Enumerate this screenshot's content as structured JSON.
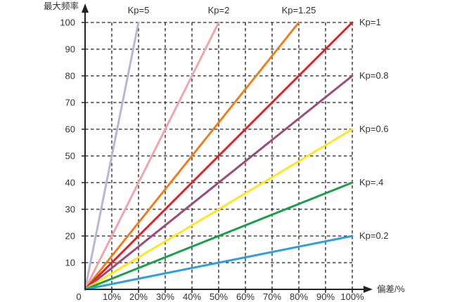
{
  "page": {
    "background": "#ffffff",
    "description": "Kp proportional-gain line chart: maximum frequency vs deviation percent"
  },
  "chart_data": {
    "type": "line",
    "title": "",
    "xlabel": "偏差/%",
    "ylabel": "最大频率",
    "xlim": [
      0,
      100
    ],
    "ylim": [
      0,
      100
    ],
    "grid": "dashed",
    "grid_color": "#222222",
    "axis_color": "#222222",
    "text_color": "#333333",
    "x_ticks": [
      {
        "value": 0,
        "label": "0"
      },
      {
        "value": 10,
        "label": "10%"
      },
      {
        "value": 20,
        "label": "20%"
      },
      {
        "value": 30,
        "label": "30%"
      },
      {
        "value": 40,
        "label": "40%"
      },
      {
        "value": 50,
        "label": "50%"
      },
      {
        "value": 60,
        "label": "60%"
      },
      {
        "value": 70,
        "label": "70%"
      },
      {
        "value": 80,
        "label": "80%"
      },
      {
        "value": 90,
        "label": "90%"
      },
      {
        "value": 100,
        "label": "100%"
      }
    ],
    "y_ticks": [
      {
        "value": 10,
        "label": "10"
      },
      {
        "value": 20,
        "label": "20"
      },
      {
        "value": 30,
        "label": "30"
      },
      {
        "value": 40,
        "label": "40"
      },
      {
        "value": 50,
        "label": "50"
      },
      {
        "value": 60,
        "label": "60"
      },
      {
        "value": 70,
        "label": "70"
      },
      {
        "value": 80,
        "label": "80"
      },
      {
        "value": 90,
        "label": "90"
      },
      {
        "value": 100,
        "label": "100"
      }
    ],
    "series": [
      {
        "name": "Kp=5",
        "kp": 5,
        "points": [
          [
            0,
            0
          ],
          [
            20,
            100
          ]
        ],
        "color": "#b7b6d8",
        "label_position": "top"
      },
      {
        "name": "Kp=2",
        "kp": 2,
        "points": [
          [
            0,
            0
          ],
          [
            50,
            100
          ]
        ],
        "color": "#f2a3ab",
        "label_position": "top"
      },
      {
        "name": "Kp=1.25",
        "kp": 1.25,
        "points": [
          [
            0,
            0
          ],
          [
            80,
            100
          ]
        ],
        "color": "#ee7d1e",
        "label_position": "top"
      },
      {
        "name": "Kp=1",
        "kp": 1,
        "points": [
          [
            0,
            0
          ],
          [
            100,
            100
          ]
        ],
        "color": "#d5232a",
        "label_position": "right"
      },
      {
        "name": "Kp=0.8",
        "kp": 0.8,
        "points": [
          [
            0,
            0
          ],
          [
            100,
            80
          ]
        ],
        "color": "#9b4a7c",
        "label_position": "right"
      },
      {
        "name": "Kp=0.6",
        "kp": 0.6,
        "points": [
          [
            0,
            0
          ],
          [
            100,
            60
          ]
        ],
        "color": "#ffe71f",
        "label_position": "right"
      },
      {
        "name": "Kp=.4",
        "kp": 0.4,
        "points": [
          [
            0,
            0
          ],
          [
            100,
            40
          ]
        ],
        "color": "#18a14b",
        "label_position": "right"
      },
      {
        "name": "Kp=0.2",
        "kp": 0.2,
        "points": [
          [
            0,
            0
          ],
          [
            100,
            20
          ]
        ],
        "color": "#2f9fdf",
        "label_position": "right"
      }
    ]
  }
}
